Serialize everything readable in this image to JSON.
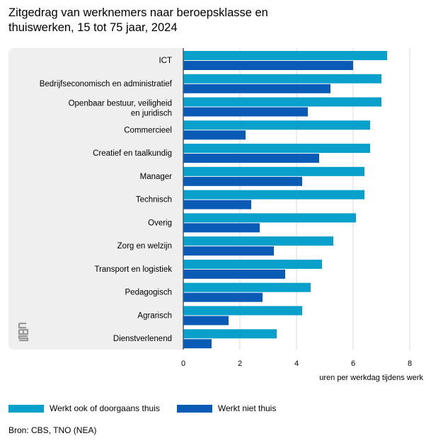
{
  "title": "Zitgedrag van werknemers naar beroepsklasse en thuiswerken, 15 tot 75 jaar, 2024",
  "source": "Bron: CBS, TNO (NEA)",
  "colors": {
    "series_1": "#0aa0cc",
    "series_2": "#0a5bb5",
    "panel": "#efefef"
  },
  "logo_icon": "cbs-logo-icon",
  "chart_data": {
    "type": "bar",
    "orientation": "horizontal",
    "categories": [
      [
        "ICT"
      ],
      [
        "Bedrijfseconomisch en administratief"
      ],
      [
        "Openbaar bestuur, veiligheid",
        "en juridisch"
      ],
      [
        "Commercieel"
      ],
      [
        "Creatief en taalkundig"
      ],
      [
        "Manager"
      ],
      [
        "Technisch"
      ],
      [
        "Overig"
      ],
      [
        "Zorg en welzijn"
      ],
      [
        "Transport en logistiek"
      ],
      [
        "Pedagogisch"
      ],
      [
        "Agrarisch"
      ],
      [
        "Dienstverlenend"
      ]
    ],
    "series": [
      {
        "name": "Werkt ook of doorgaans thuis",
        "values": [
          7.2,
          7.0,
          7.0,
          6.6,
          6.6,
          6.4,
          6.4,
          6.1,
          5.3,
          4.9,
          4.5,
          4.2,
          3.3
        ]
      },
      {
        "name": "Werkt niet thuis",
        "values": [
          6.0,
          5.2,
          4.4,
          2.2,
          4.8,
          4.2,
          2.4,
          2.7,
          3.2,
          3.6,
          2.8,
          1.6,
          1.0
        ]
      }
    ],
    "xlabel": "uren per werkdag tijdens werk",
    "ylabel": "",
    "xlim": [
      0,
      8
    ],
    "xticks": [
      0,
      2,
      4,
      6,
      8
    ],
    "grid": true,
    "legend_position": "bottom-left"
  }
}
